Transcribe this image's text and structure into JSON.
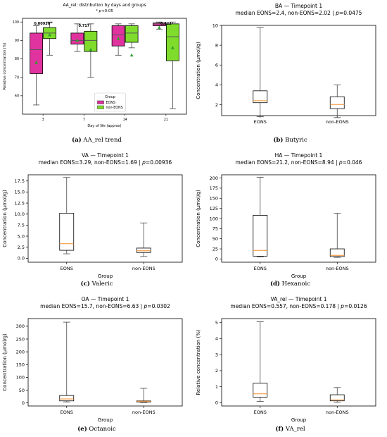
{
  "colors": {
    "eons": "#e0339f",
    "non_eons": "#7fdc2c",
    "median_line": "#f28e2b",
    "mean_marker": "#2ca02c"
  },
  "captions": [
    {
      "letter": "(a)",
      "text": "AA_rel trend"
    },
    {
      "letter": "(b)",
      "text": "Butyric"
    },
    {
      "letter": "(c)",
      "text": "Valeric"
    },
    {
      "letter": "(d)",
      "text": "Hexanoic"
    },
    {
      "letter": "(e)",
      "text": "Octanoic"
    },
    {
      "letter": "(f)",
      "text": "VA_rel"
    }
  ],
  "chart_data": [
    {
      "type": "box",
      "title": "AA_rel: distribution by days and groups",
      "subtitle": "* p<0.05",
      "xlabel": "Day of life (approx)",
      "ylabel": "Relative concentration (%)",
      "ylim": [
        50,
        102
      ],
      "yticks": [
        60,
        70,
        80,
        90,
        100
      ],
      "categories": [
        "3",
        "7",
        "14",
        "21"
      ],
      "legend": {
        "title": "Group",
        "position": "lower center",
        "entries": [
          "EONS",
          "non-EONS"
        ]
      },
      "annotations": [
        "0.00936*",
        "0.717",
        "",
        "0.822"
      ],
      "series": [
        {
          "name": "EONS",
          "boxes": [
            {
              "whislo": 55,
              "q1": 72,
              "med": 85,
              "q3": 94,
              "whishi": 98,
              "mean": 78
            },
            {
              "whislo": 84,
              "q1": 88,
              "med": 90,
              "q3": 94,
              "whishi": 99,
              "mean": 90
            },
            {
              "whislo": 82,
              "q1": 87,
              "med": 93,
              "q3": 98,
              "whishi": 99,
              "mean": 91
            },
            {
              "whislo": 96,
              "q1": 98,
              "med": 99,
              "q3": 99.5,
              "whishi": 100,
              "mean": 97
            }
          ]
        },
        {
          "name": "non-EONS",
          "boxes": [
            {
              "whislo": 82,
              "q1": 91,
              "med": 94,
              "q3": 97,
              "whishi": 100,
              "mean": 93
            },
            {
              "whislo": 70,
              "q1": 84,
              "med": 90,
              "q3": 95,
              "whishi": 99,
              "mean": 85
            },
            {
              "whislo": 86,
              "q1": 89,
              "med": 94,
              "q3": 98,
              "whishi": 99,
              "mean": 82
            },
            {
              "whislo": 53,
              "q1": 79,
              "med": 92,
              "q3": 99,
              "whishi": 100,
              "mean": 86
            }
          ]
        }
      ]
    },
    {
      "type": "box",
      "title": "BA — Timepoint 1",
      "subtitle": "median EONS=2.4, non-EONS=2.02 | p=0.0475",
      "xlabel": "",
      "ylabel": "Concentration (µmol/g)",
      "ylim": [
        0.9,
        10.0
      ],
      "yticks": [
        2,
        4,
        6,
        8,
        10
      ],
      "categories": [
        "EONS",
        "non-EONS"
      ],
      "boxes": [
        {
          "whislo": 0.8,
          "q1": 2.2,
          "med": 2.4,
          "q3": 3.4,
          "whishi": 9.8
        },
        {
          "whislo": 0.7,
          "q1": 1.6,
          "med": 2.02,
          "q3": 2.8,
          "whishi": 4.0
        }
      ]
    },
    {
      "type": "box",
      "title": "VA — Timepoint 1",
      "subtitle": "median EONS=3.29, non-EONS=1.69 | p=0.00936",
      "xlabel": "Group",
      "ylabel": "Concentration (µmol/g)",
      "ylim": [
        -0.9,
        18.9
      ],
      "yticks": [
        0.0,
        2.5,
        5.0,
        7.5,
        10.0,
        12.5,
        15.0,
        17.5
      ],
      "categories": [
        "EONS",
        "non-EONS"
      ],
      "boxes": [
        {
          "whislo": 1.0,
          "q1": 1.8,
          "med": 3.29,
          "q3": 10.2,
          "whishi": 18.3
        },
        {
          "whislo": 0.4,
          "q1": 1.3,
          "med": 1.69,
          "q3": 2.3,
          "whishi": 8.0
        }
      ]
    },
    {
      "type": "box",
      "title": "HA — Timepoint 1",
      "subtitle": "median EONS=21.2, non-EONS=8.94 | p=0.046",
      "xlabel": "Group",
      "ylabel": "Concentration (µmol/g)",
      "ylim": [
        -8,
        208
      ],
      "yticks": [
        0,
        25,
        50,
        75,
        100,
        125,
        150,
        175,
        200
      ],
      "categories": [
        "EONS",
        "non-EONS"
      ],
      "boxes": [
        {
          "whislo": 5,
          "q1": 7,
          "med": 21.2,
          "q3": 108,
          "whishi": 202
        },
        {
          "whislo": 4,
          "q1": 6,
          "med": 8.94,
          "q3": 25,
          "whishi": 113
        }
      ]
    },
    {
      "type": "box",
      "title": "OA — Timepoint 1",
      "subtitle": "median EONS=15.7, non-EONS=6.63 | p=0.0302",
      "xlabel": "Group",
      "ylabel": "Concentration (µmol/g)",
      "ylim": [
        -12,
        330
      ],
      "yticks": [
        0,
        50,
        100,
        150,
        200,
        250,
        300
      ],
      "categories": [
        "EONS",
        "non-EONS"
      ],
      "boxes": [
        {
          "whislo": 4,
          "q1": 8,
          "med": 15.7,
          "q3": 29,
          "whishi": 316
        },
        {
          "whislo": 2,
          "q1": 4,
          "med": 6.63,
          "q3": 8,
          "whishi": 57
        }
      ]
    },
    {
      "type": "box",
      "title": "VA_rel — Timepoint 1",
      "subtitle": "median EONS=0.557, non-EONS=0.178 | p=0.0126",
      "xlabel": "Group",
      "ylabel": "Relative concentration (%)",
      "ylim": [
        -0.2,
        5.25
      ],
      "yticks": [
        0,
        1,
        2,
        3,
        4,
        5
      ],
      "categories": [
        "EONS",
        "non-EONS"
      ],
      "boxes": [
        {
          "whislo": 0.08,
          "q1": 0.35,
          "med": 0.557,
          "q3": 1.22,
          "whishi": 5.05
        },
        {
          "whislo": 0.03,
          "q1": 0.12,
          "med": 0.178,
          "q3": 0.5,
          "whishi": 0.95
        }
      ]
    }
  ]
}
